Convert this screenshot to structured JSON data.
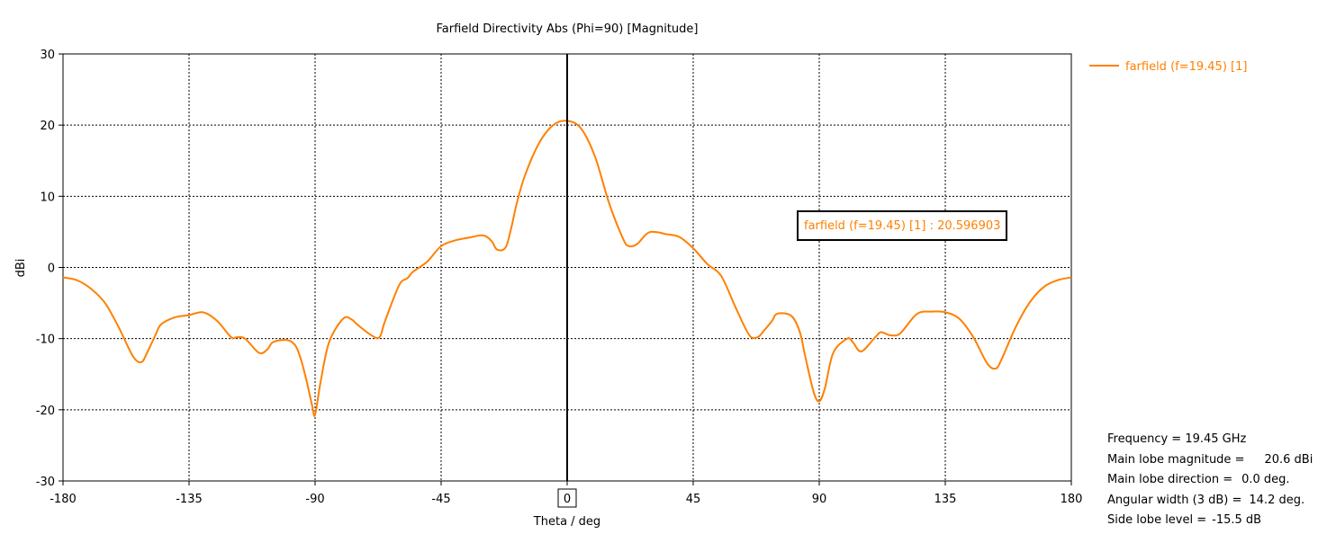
{
  "chart_data": {
    "type": "line",
    "title": "Farfield Directivity Abs (Phi=90) [Magnitude]",
    "xlabel": "Theta / deg",
    "ylabel": "dBi",
    "xlim": [
      -180,
      180
    ],
    "ylim": [
      -30,
      30
    ],
    "xticks": [
      -180,
      -135,
      -90,
      -45,
      0,
      45,
      90,
      135,
      180
    ],
    "xtick_labels": [
      "-180",
      "-135",
      "-90",
      "-45",
      "0",
      "45",
      "90",
      "135",
      "180"
    ],
    "yticks": [
      -30,
      -20,
      -10,
      0,
      10,
      20,
      30
    ],
    "ytick_labels": [
      "-30",
      "-20",
      "-10",
      "0",
      "10",
      "20",
      "30"
    ],
    "grid": true,
    "legend_position": "top-right",
    "marker_theta": 0,
    "marker_label": "0",
    "annotation": "farfield (f=19.45) [1] : 20.596903",
    "series": [
      {
        "name": "farfield (f=19.45) [1]",
        "color": "#ff8000",
        "x": [
          -180,
          -175,
          -170,
          -165,
          -160,
          -155,
          -152,
          -150,
          -147,
          -145,
          -140,
          -135,
          -130,
          -125,
          -120,
          -118,
          -115,
          -110,
          -107,
          -105,
          -100,
          -97,
          -95,
          -93,
          -91,
          -90,
          -88,
          -85,
          -80,
          -77,
          -75,
          -70,
          -67,
          -65,
          -60,
          -57,
          -55,
          -50,
          -45,
          -40,
          -35,
          -30,
          -27,
          -25,
          -22,
          -20,
          -18,
          -15,
          -10,
          -5,
          0,
          5,
          10,
          15,
          20,
          22,
          25,
          28,
          30,
          33,
          35,
          40,
          45,
          50,
          55,
          60,
          65,
          68,
          70,
          73,
          75,
          80,
          83,
          85,
          88,
          90,
          92,
          95,
          100,
          102,
          105,
          110,
          112,
          115,
          118,
          120,
          125,
          130,
          135,
          140,
          145,
          150,
          153,
          155,
          160,
          165,
          170,
          175,
          180
        ],
        "values": [
          -1.4,
          -1.8,
          -3.0,
          -5.0,
          -8.5,
          -12.5,
          -13.3,
          -12.0,
          -9.5,
          -8.0,
          -7.0,
          -6.7,
          -6.3,
          -7.5,
          -9.8,
          -9.8,
          -10.0,
          -12.0,
          -11.5,
          -10.5,
          -10.2,
          -11.0,
          -13.0,
          -16.0,
          -19.5,
          -20.7,
          -16.0,
          -10.5,
          -7.2,
          -7.3,
          -8.0,
          -9.5,
          -9.8,
          -7.5,
          -2.5,
          -1.5,
          -0.6,
          0.8,
          3.0,
          3.8,
          4.2,
          4.5,
          3.7,
          2.5,
          2.8,
          5.5,
          9.0,
          13.0,
          17.5,
          20.0,
          20.6,
          19.5,
          15.5,
          9.0,
          4.0,
          3.0,
          3.3,
          4.6,
          5.0,
          4.9,
          4.7,
          4.3,
          2.7,
          0.5,
          -1.2,
          -5.5,
          -9.5,
          -9.8,
          -9.0,
          -7.6,
          -6.5,
          -6.8,
          -9.0,
          -12.5,
          -17.5,
          -18.8,
          -17.0,
          -12.0,
          -10.0,
          -10.5,
          -11.8,
          -9.8,
          -9.1,
          -9.5,
          -9.5,
          -8.8,
          -6.5,
          -6.2,
          -6.3,
          -7.2,
          -9.8,
          -13.5,
          -14.2,
          -13.0,
          -8.5,
          -5.0,
          -2.8,
          -1.8,
          -1.4
        ]
      }
    ],
    "info": [
      {
        "label": "Frequency = ",
        "value": "19.45 GHz"
      },
      {
        "label": "Main lobe magnitude =",
        "value": "20.6 dBi"
      },
      {
        "label": "Main lobe direction =",
        "value": "0.0 deg."
      },
      {
        "label": "Angular width (3 dB) =",
        "value": "14.2 deg."
      },
      {
        "label": "Side lobe level =",
        "value": "-15.5 dB"
      }
    ]
  }
}
